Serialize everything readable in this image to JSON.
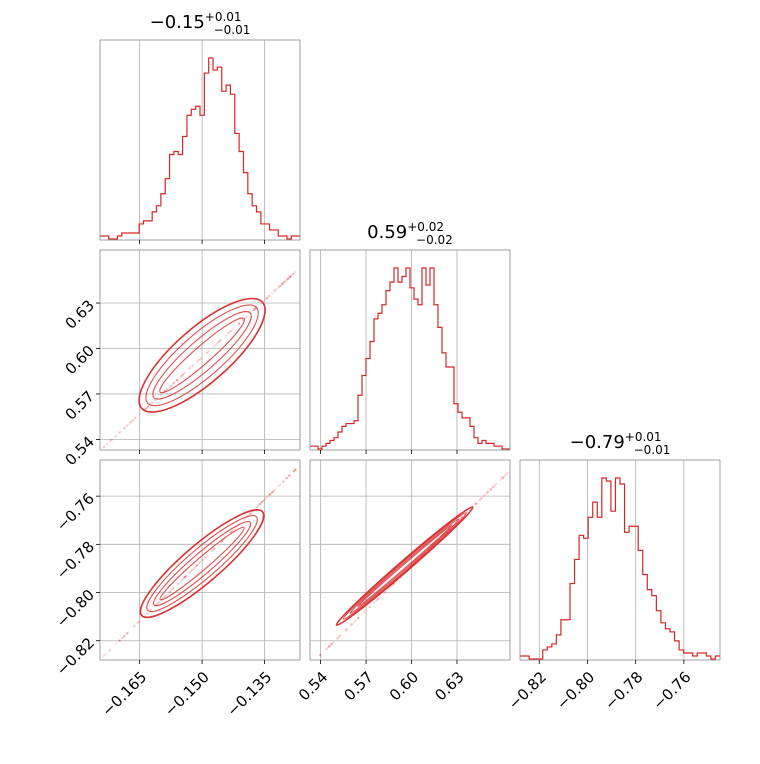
{
  "chart_data": {
    "type": "corner",
    "color": "#d62728",
    "grid": true,
    "parameters": [
      {
        "median": "−0.15",
        "plus": "+0.01",
        "minus": "−0.01",
        "range": [
          -0.1745,
          -0.1265
        ],
        "ticks": [
          -0.165,
          -0.15,
          -0.135
        ],
        "tick_labels": [
          "−0.165",
          "−0.150",
          "−0.135"
        ]
      },
      {
        "median": "0.59",
        "plus": "+0.02",
        "minus": "−0.02",
        "range": [
          0.533,
          0.665
        ],
        "ticks": [
          0.54,
          0.57,
          0.6,
          0.63
        ],
        "tick_labels": [
          "0.54",
          "0.57",
          "0.60",
          "0.63"
        ]
      },
      {
        "median": "−0.79",
        "plus": "+0.01",
        "minus": "−0.01",
        "range": [
          -0.828,
          -0.745
        ],
        "ticks": [
          -0.82,
          -0.8,
          -0.78,
          -0.76
        ],
        "tick_labels": [
          "−0.82",
          "−0.80",
          "−0.78",
          "−0.76"
        ]
      }
    ],
    "histograms": [
      {
        "name": "param1",
        "counts": [
          1,
          1,
          0,
          0,
          1,
          2,
          2,
          2,
          2,
          5,
          6,
          6,
          9,
          11,
          15,
          20,
          28,
          29,
          28,
          34,
          41,
          43,
          44,
          41,
          55,
          60,
          56,
          57,
          49,
          51,
          48,
          35,
          29,
          22,
          15,
          11,
          9,
          5,
          5,
          3,
          3,
          1,
          1,
          0,
          1,
          1
        ],
        "range": [
          -0.1745,
          -0.1265
        ]
      },
      {
        "name": "param2",
        "counts": [
          1,
          1,
          0,
          1,
          2,
          3,
          4,
          6,
          8,
          9,
          9,
          10,
          19,
          26,
          32,
          38,
          46,
          48,
          51,
          56,
          59,
          64,
          59,
          61,
          64,
          57,
          53,
          51,
          64,
          58,
          64,
          51,
          43,
          34,
          29,
          29,
          16,
          13,
          11,
          11,
          8,
          4,
          2,
          3,
          2,
          2,
          1,
          1,
          0,
          0
        ],
        "range": [
          0.533,
          0.665
        ]
      },
      {
        "name": "param3",
        "counts": [
          1,
          1,
          0,
          0,
          0,
          3,
          4,
          5,
          8,
          13,
          13,
          25,
          33,
          41,
          40,
          47,
          52,
          47,
          60,
          59,
          49,
          60,
          58,
          42,
          44,
          44,
          36,
          28,
          23,
          21,
          16,
          12,
          10,
          9,
          6,
          3,
          2,
          2,
          1,
          2,
          2,
          1,
          0,
          1
        ],
        "range": [
          -0.828,
          -0.745
        ]
      }
    ],
    "density_panels": [
      {
        "x_param": 1,
        "y_param": 2,
        "x_start": -0.1645,
        "x_end": -0.1355,
        "y_start": 0.5605,
        "y_end": 0.6305,
        "width": 0.0065,
        "samples_range": [
          [
            -0.174,
            0.534
          ],
          [
            -0.127,
            0.652
          ]
        ]
      },
      {
        "x_param": 1,
        "y_param": 3,
        "x_start": -0.1645,
        "x_end": -0.1355,
        "y_start": -0.8095,
        "y_end": -0.7665,
        "width": 0.0045,
        "samples_range": [
          [
            -0.174,
            -0.827
          ],
          [
            -0.127,
            -0.748
          ]
        ]
      },
      {
        "x_param": 2,
        "y_param": 3,
        "x_start": 0.5505,
        "x_end": 0.6405,
        "y_start": -0.8135,
        "y_end": -0.7645,
        "width": 0.0035,
        "samples_range": [
          [
            0.538,
            -0.827
          ],
          [
            0.664,
            -0.75
          ]
        ]
      }
    ]
  }
}
